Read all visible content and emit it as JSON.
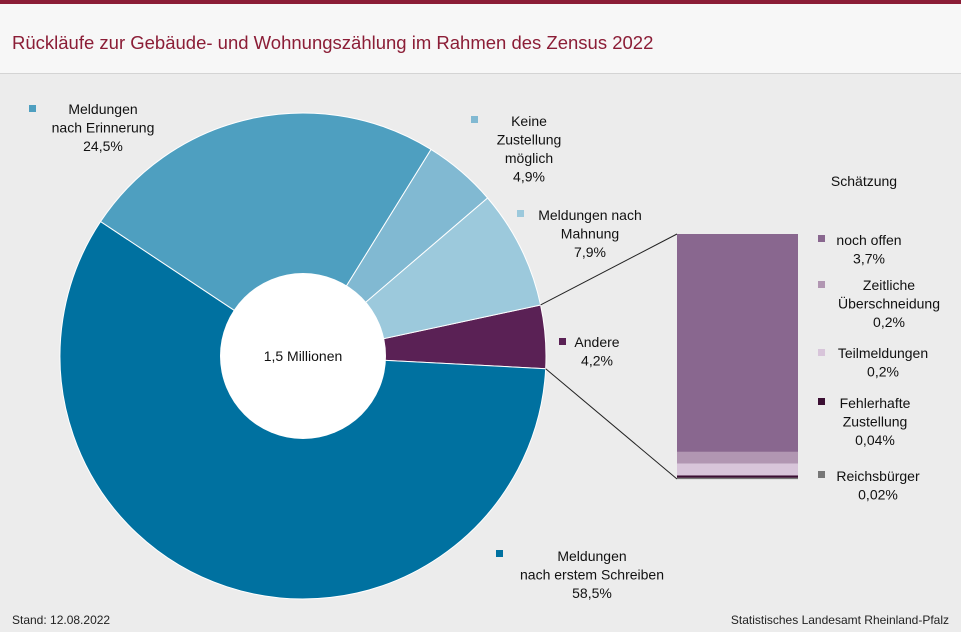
{
  "title": "Rückläufe zur Gebäude- und Wohnungszählung im Rahmen des Zensus 2022",
  "colors": {
    "accent": "#8b1d36",
    "nach_erstem_schreiben": "#0071a0",
    "nach_erinnerung": "#4e9fc0",
    "keine_zustellung": "#81b9d2",
    "nach_mahnung": "#9cc9dc",
    "andere": "#5a2155",
    "noch_offen": "#89678f",
    "zeitliche": "#b196b2",
    "teilmeldungen": "#d8c5da",
    "fehlerhafte": "#3b0f33",
    "reichsbuerger": "#777777"
  },
  "center_label": "1,5 Millionen",
  "schaetzung_label": "Schätzung",
  "footer": {
    "stand": "Stand: 12.08.2022",
    "source": "Statistisches Landesamt Rheinland-Pfalz"
  },
  "chart_data": {
    "type": "pie",
    "title": "Rückläufe zur Gebäude- und Wohnungszählung im Rahmen des Zensus 2022",
    "total": "1,5 Millionen",
    "slices": [
      {
        "key": "andere",
        "label_lines": [
          "Andere"
        ],
        "value_label": "4,2%",
        "value": 4.2
      },
      {
        "key": "nach_erstem_schreiben",
        "label_lines": [
          "Meldungen",
          "nach erstem Schreiben"
        ],
        "value_label": "58,5%",
        "value": 58.5
      },
      {
        "key": "nach_erinnerung",
        "label_lines": [
          "Meldungen",
          "nach Erinnerung"
        ],
        "value_label": "24,5%",
        "value": 24.5
      },
      {
        "key": "keine_zustellung",
        "label_lines": [
          "Keine",
          "Zustellung",
          "möglich"
        ],
        "value_label": "4,9%",
        "value": 4.9
      },
      {
        "key": "nach_mahnung",
        "label_lines": [
          "Meldungen  nach",
          "Mahnung"
        ],
        "value_label": "7,9%",
        "value": 7.9
      }
    ],
    "breakdown": {
      "of": "andere",
      "title": "Schätzung",
      "segments": [
        {
          "key": "noch_offen",
          "label_lines": [
            "noch  offen"
          ],
          "value_label": "3,7%",
          "value": 3.7
        },
        {
          "key": "zeitliche",
          "label_lines": [
            "Zeitliche",
            "Überschneidung"
          ],
          "value_label": "0,2%",
          "value": 0.2
        },
        {
          "key": "teilmeldungen",
          "label_lines": [
            "Teilmeldungen"
          ],
          "value_label": "0,2%",
          "value": 0.2
        },
        {
          "key": "fehlerhafte",
          "label_lines": [
            "Fehlerhafte",
            "Zustellung"
          ],
          "value_label": "0,04%",
          "value": 0.04
        },
        {
          "key": "reichsbuerger",
          "label_lines": [
            "Reichsbürger"
          ],
          "value_label": "0,02%",
          "value": 0.02
        }
      ]
    }
  }
}
